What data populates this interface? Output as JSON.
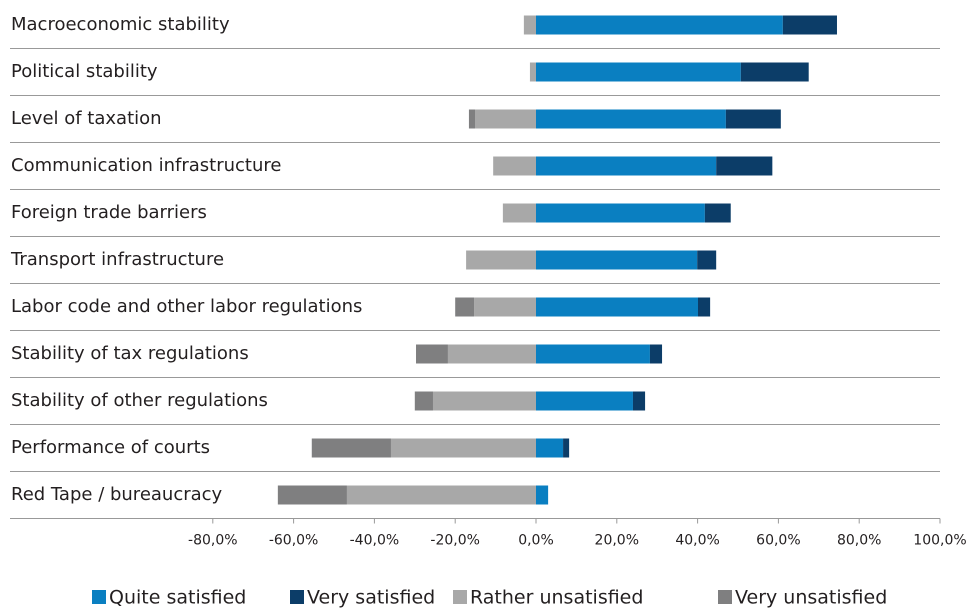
{
  "chart_data": {
    "type": "diverging_bar",
    "categories": [
      "Macroeconomic stability",
      "Political stability",
      "Level of taxation",
      "Communication infrastructure",
      "Foreign trade barriers",
      "Transport infrastructure",
      "Labor code and other labor regulations",
      "Stability of tax regulations",
      "Stability of other regulations",
      "Performance of courts",
      "Red Tape / bureaucracy"
    ],
    "series": [
      {
        "name": "Quite satisfied",
        "color": "#0a7fc1",
        "values": [
          61.1,
          50.7,
          47.0,
          44.6,
          41.8,
          39.9,
          40.1,
          28.2,
          24.0,
          6.7,
          3.0
        ]
      },
      {
        "name": "Very satisfied",
        "color": "#0c3d68",
        "values": [
          13.4,
          16.8,
          13.6,
          13.9,
          6.4,
          4.7,
          3.0,
          3.0,
          3.0,
          1.5,
          0
        ]
      },
      {
        "name": "Rather unsatisfied",
        "color": "#a8a8a8",
        "values": [
          -3.0,
          -1.5,
          -15.1,
          -10.6,
          -8.2,
          -17.3,
          -15.3,
          -21.8,
          -25.5,
          -35.9,
          -46.8
        ]
      },
      {
        "name": "Very unsatisfied",
        "color": "#7f7f80",
        "values": [
          0,
          0,
          -1.5,
          0,
          0,
          0,
          -4.7,
          -7.9,
          -4.5,
          -19.6,
          -17.1
        ]
      }
    ],
    "xlim": [
      -100,
      100
    ],
    "xticks": [
      {
        "value": -80,
        "label": "-80,0%"
      },
      {
        "value": -60,
        "label": "-60,0%"
      },
      {
        "value": -40,
        "label": "-40,0%"
      },
      {
        "value": -20,
        "label": "-20,0%"
      },
      {
        "value": 0,
        "label": "0,0%"
      },
      {
        "value": 20,
        "label": "20,0%"
      },
      {
        "value": 40,
        "label": "40,0%"
      },
      {
        "value": 60,
        "label": "60,0%"
      },
      {
        "value": 80,
        "label": "80,0%"
      },
      {
        "value": 100,
        "label": "100,0%"
      }
    ],
    "grid": false,
    "legend": "bottom"
  }
}
